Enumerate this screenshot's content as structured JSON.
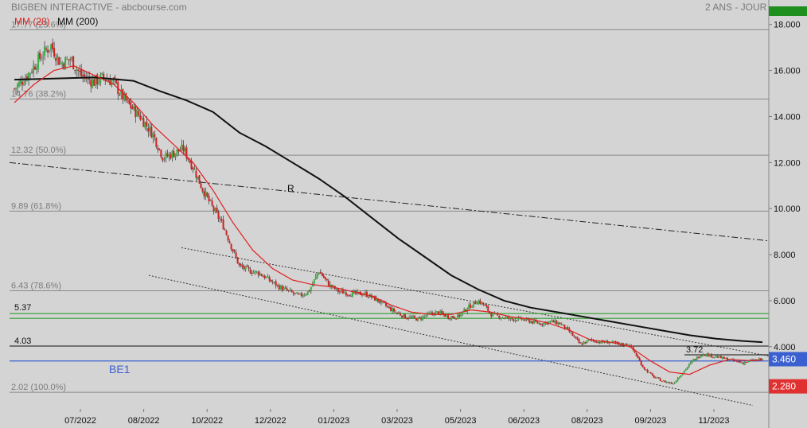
{
  "header": {
    "title": "BIGBEN INTERACTIVE - abcbourse.com",
    "period": "2 ANS - JOUR"
  },
  "legend": {
    "ma_short": "MM (28)",
    "ma_long": "MM (200)"
  },
  "colors": {
    "background": "#d4d4d4",
    "up_candle": "#3cb043",
    "down_candle": "#cc2222",
    "ma_short": "#e02020",
    "ma_long": "#111111",
    "support_line": "#3a5fd0",
    "green_line": "#2e9e2e",
    "price_box": "#e03030",
    "last_box": "#3a5fd0",
    "top_box": "#1f8f1f"
  },
  "chart_data": {
    "type": "candlestick",
    "y_axis": {
      "side": "right",
      "range": [
        1.3,
        18.3
      ],
      "ticks": [
        "18.000",
        "16.000",
        "14.000",
        "12.000",
        "10.000",
        "8.000",
        "6.000",
        "4.000"
      ]
    },
    "x_axis": {
      "ticks": [
        "07/2022",
        "08/2022",
        "10/2022",
        "12/2022",
        "01/2023",
        "03/2023",
        "05/2023",
        "06/2023",
        "08/2023",
        "09/2023",
        "11/2023"
      ]
    },
    "fibonacci": [
      {
        "value": 17.77,
        "label": "17.77 (23.6%)"
      },
      {
        "value": 14.76,
        "label": "14.76 (38.2%)"
      },
      {
        "value": 12.32,
        "label": "12.32 (50.0%)"
      },
      {
        "value": 9.89,
        "label": "9.89 (61.8%)"
      },
      {
        "value": 6.43,
        "label": "6.43 (78.6%)"
      },
      {
        "value": 2.02,
        "label": "2.02 (100.0%)"
      }
    ],
    "levels": [
      {
        "value": 5.37,
        "label": "5.37",
        "style": "green-band"
      },
      {
        "value": 4.03,
        "label": "4.03",
        "style": "black"
      },
      {
        "value": 3.72,
        "label": "3.72",
        "style": "black-short"
      },
      {
        "value": 3.45,
        "label": "BE1",
        "style": "blue"
      }
    ],
    "trendline_label": "R",
    "price_tags": {
      "last": "3.460",
      "low": "2.280"
    },
    "price_path": [
      [
        0,
        15.2
      ],
      [
        2,
        15.8
      ],
      [
        4,
        16.6
      ],
      [
        5.5,
        17.1
      ],
      [
        7,
        16.3
      ],
      [
        8.5,
        16.5
      ],
      [
        10,
        15.8
      ],
      [
        12,
        15.5
      ],
      [
        13.5,
        15.7
      ],
      [
        15,
        15.5
      ],
      [
        16,
        15.0
      ],
      [
        17,
        14.6
      ],
      [
        18,
        14.3
      ],
      [
        19,
        14.0
      ],
      [
        21,
        13.2
      ],
      [
        22.5,
        12.2
      ],
      [
        24,
        12.4
      ],
      [
        25.5,
        12.6
      ],
      [
        27,
        11.8
      ],
      [
        28.5,
        10.8
      ],
      [
        30,
        10.0
      ],
      [
        31.5,
        9.3
      ],
      [
        33,
        8.2
      ],
      [
        34,
        7.5
      ],
      [
        35.5,
        7.3
      ],
      [
        37,
        7.2
      ],
      [
        38.5,
        6.9
      ],
      [
        40,
        6.6
      ],
      [
        41.5,
        6.4
      ],
      [
        43,
        6.2
      ],
      [
        44.5,
        6.4
      ],
      [
        46,
        7.3
      ],
      [
        47.5,
        6.7
      ],
      [
        49,
        6.4
      ],
      [
        51,
        6.3
      ],
      [
        53,
        6.3
      ],
      [
        55,
        6.0
      ],
      [
        57,
        5.6
      ],
      [
        59,
        5.3
      ],
      [
        61,
        5.2
      ],
      [
        62.5,
        5.4
      ],
      [
        64,
        5.5
      ],
      [
        65.5,
        5.3
      ],
      [
        67,
        5.3
      ],
      [
        68.5,
        5.7
      ],
      [
        70,
        6.0
      ],
      [
        71,
        5.8
      ],
      [
        72,
        5.4
      ],
      [
        73.5,
        5.3
      ],
      [
        75,
        5.2
      ],
      [
        76.5,
        5.2
      ],
      [
        78,
        5.1
      ],
      [
        79.5,
        5.0
      ],
      [
        81,
        5.1
      ],
      [
        82.5,
        5.0
      ],
      [
        84,
        4.6
      ],
      [
        85.5,
        4.1
      ],
      [
        87,
        4.3
      ],
      [
        88.5,
        4.2
      ],
      [
        90,
        4.2
      ],
      [
        91.5,
        4.1
      ],
      [
        93,
        4.1
      ],
      [
        94,
        3.6
      ],
      [
        95,
        3.1
      ],
      [
        96.5,
        2.7
      ],
      [
        98,
        2.5
      ],
      [
        99.5,
        2.4
      ],
      [
        101,
        2.9
      ],
      [
        102.5,
        3.4
      ],
      [
        104,
        3.7
      ],
      [
        105.5,
        3.6
      ],
      [
        107,
        3.5
      ],
      [
        108.5,
        3.4
      ],
      [
        110,
        3.3
      ],
      [
        111.5,
        3.4
      ],
      [
        113,
        3.46
      ]
    ],
    "ma28_path": [
      [
        0,
        14.6
      ],
      [
        3,
        15.4
      ],
      [
        6,
        16.0
      ],
      [
        9,
        16.2
      ],
      [
        12,
        15.8
      ],
      [
        15,
        15.4
      ],
      [
        18,
        14.6
      ],
      [
        21,
        13.6
      ],
      [
        24,
        12.8
      ],
      [
        27,
        12.0
      ],
      [
        30,
        10.8
      ],
      [
        33,
        9.4
      ],
      [
        36,
        8.2
      ],
      [
        39,
        7.4
      ],
      [
        42,
        6.9
      ],
      [
        45,
        6.7
      ],
      [
        48,
        6.6
      ],
      [
        51,
        6.4
      ],
      [
        54,
        6.2
      ],
      [
        57,
        5.8
      ],
      [
        60,
        5.5
      ],
      [
        63,
        5.4
      ],
      [
        66,
        5.4
      ],
      [
        69,
        5.6
      ],
      [
        72,
        5.5
      ],
      [
        75,
        5.3
      ],
      [
        78,
        5.2
      ],
      [
        81,
        5.0
      ],
      [
        84,
        4.7
      ],
      [
        87,
        4.3
      ],
      [
        90,
        4.2
      ],
      [
        93,
        4.0
      ],
      [
        96,
        3.4
      ],
      [
        99,
        2.9
      ],
      [
        102,
        2.8
      ],
      [
        105,
        3.2
      ],
      [
        108,
        3.45
      ],
      [
        111,
        3.4
      ],
      [
        113,
        3.42
      ]
    ],
    "ma200_path": [
      [
        0,
        15.6
      ],
      [
        6,
        15.65
      ],
      [
        12,
        15.7
      ],
      [
        18,
        15.55
      ],
      [
        22,
        15.1
      ],
      [
        26,
        14.7
      ],
      [
        30,
        14.2
      ],
      [
        34,
        13.3
      ],
      [
        38,
        12.7
      ],
      [
        42,
        12.0
      ],
      [
        46,
        11.3
      ],
      [
        50,
        10.5
      ],
      [
        54,
        9.6
      ],
      [
        58,
        8.7
      ],
      [
        62,
        7.9
      ],
      [
        66,
        7.1
      ],
      [
        70,
        6.5
      ],
      [
        74,
        6.0
      ],
      [
        78,
        5.7
      ],
      [
        82,
        5.5
      ],
      [
        86,
        5.3
      ],
      [
        90,
        5.1
      ],
      [
        94,
        4.9
      ],
      [
        98,
        4.7
      ],
      [
        102,
        4.5
      ],
      [
        106,
        4.35
      ],
      [
        110,
        4.25
      ],
      [
        113,
        4.2
      ]
    ],
    "grid": true
  }
}
